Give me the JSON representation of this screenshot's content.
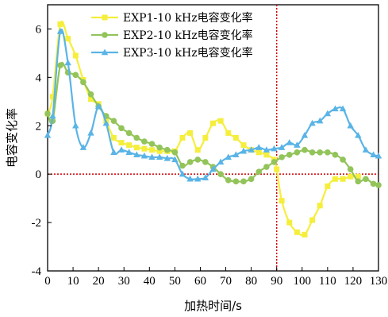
{
  "chart_data": {
    "type": "line",
    "xlabel": "加热时间/s",
    "ylabel": "电容变化率",
    "xlim": [
      0,
      130
    ],
    "ylim": [
      -4,
      7
    ],
    "x_ticks": [
      0,
      10,
      20,
      30,
      40,
      50,
      60,
      70,
      80,
      90,
      100,
      110,
      120,
      130
    ],
    "y_ticks": [
      -4,
      -2,
      0,
      2,
      4,
      6
    ],
    "grid": false,
    "legend_position": "top-right",
    "reference_lines": [
      {
        "orientation": "vertical",
        "x": 90,
        "color": "#cc0000",
        "style": "dotted"
      },
      {
        "orientation": "horizontal",
        "y": 0,
        "color": "#cc0000",
        "style": "dotted"
      }
    ],
    "series": [
      {
        "name": "EXP1-10 kHz电容变化率",
        "color": "#f5ee3c",
        "marker": "square",
        "x": [
          0,
          2,
          5,
          8,
          11,
          14,
          17,
          20,
          23,
          26,
          29,
          32,
          35,
          38,
          41,
          44,
          47,
          50,
          53,
          56,
          59,
          62,
          65,
          68,
          71,
          74,
          77,
          80,
          83,
          86,
          89,
          90,
          92,
          95,
          98,
          101,
          104,
          107,
          110,
          113,
          116,
          119,
          122
        ],
        "y": [
          2.5,
          3.2,
          6.2,
          5.6,
          4.9,
          3.9,
          3.1,
          2.9,
          2.2,
          1.5,
          1.3,
          1.2,
          1.1,
          1.05,
          1.0,
          0.95,
          0.95,
          0.95,
          1.5,
          1.7,
          1.0,
          1.5,
          2.1,
          2.2,
          1.7,
          1.5,
          1.2,
          1.0,
          0.9,
          0.8,
          0.6,
          0.2,
          -1.1,
          -2.0,
          -2.4,
          -2.5,
          -1.9,
          -1.3,
          -0.5,
          -0.2,
          -0.2,
          -0.1,
          -0.1
        ]
      },
      {
        "name": "EXP2-10 kHz电容变化率",
        "color": "#92c45a",
        "marker": "circle",
        "x": [
          0,
          2,
          5,
          8,
          11,
          14,
          17,
          20,
          23,
          26,
          29,
          32,
          35,
          38,
          41,
          44,
          47,
          50,
          53,
          56,
          59,
          62,
          65,
          68,
          71,
          74,
          77,
          80,
          83,
          86,
          89,
          92,
          95,
          98,
          101,
          104,
          107,
          110,
          113,
          116,
          119,
          122,
          125,
          128,
          130
        ],
        "y": [
          2.5,
          2.2,
          4.5,
          4.2,
          4.1,
          3.8,
          3.3,
          2.8,
          2.4,
          2.2,
          1.9,
          1.7,
          1.5,
          1.35,
          1.25,
          1.1,
          1.0,
          0.9,
          0.35,
          0.5,
          0.6,
          0.5,
          0.3,
          0.0,
          -0.25,
          -0.3,
          -0.3,
          -0.2,
          0.1,
          0.3,
          0.5,
          0.7,
          0.8,
          0.9,
          1.0,
          0.9,
          0.9,
          0.9,
          0.8,
          0.6,
          0.2,
          -0.3,
          -0.2,
          -0.4,
          -0.45
        ]
      },
      {
        "name": "EXP3-10 kHz电容变化率",
        "color": "#5ab4e6",
        "marker": "triangle",
        "x": [
          0,
          2,
          5,
          8,
          11,
          14,
          17,
          20,
          23,
          26,
          29,
          32,
          35,
          38,
          41,
          44,
          47,
          50,
          53,
          56,
          59,
          62,
          65,
          68,
          71,
          74,
          77,
          80,
          83,
          86,
          89,
          92,
          95,
          98,
          101,
          104,
          107,
          110,
          113,
          116,
          119,
          122,
          125,
          128,
          130
        ],
        "y": [
          1.6,
          2.4,
          5.9,
          4.6,
          2.0,
          1.1,
          1.7,
          2.8,
          2.1,
          0.9,
          1.0,
          0.9,
          0.8,
          0.75,
          0.7,
          0.7,
          0.65,
          0.6,
          0.0,
          -0.2,
          -0.2,
          -0.15,
          0.2,
          0.5,
          0.7,
          0.8,
          0.95,
          1.0,
          1.1,
          1.0,
          1.05,
          1.1,
          1.3,
          1.2,
          1.6,
          2.1,
          2.2,
          2.5,
          2.7,
          2.7,
          2.0,
          1.6,
          1.0,
          0.8,
          0.75
        ]
      }
    ]
  }
}
